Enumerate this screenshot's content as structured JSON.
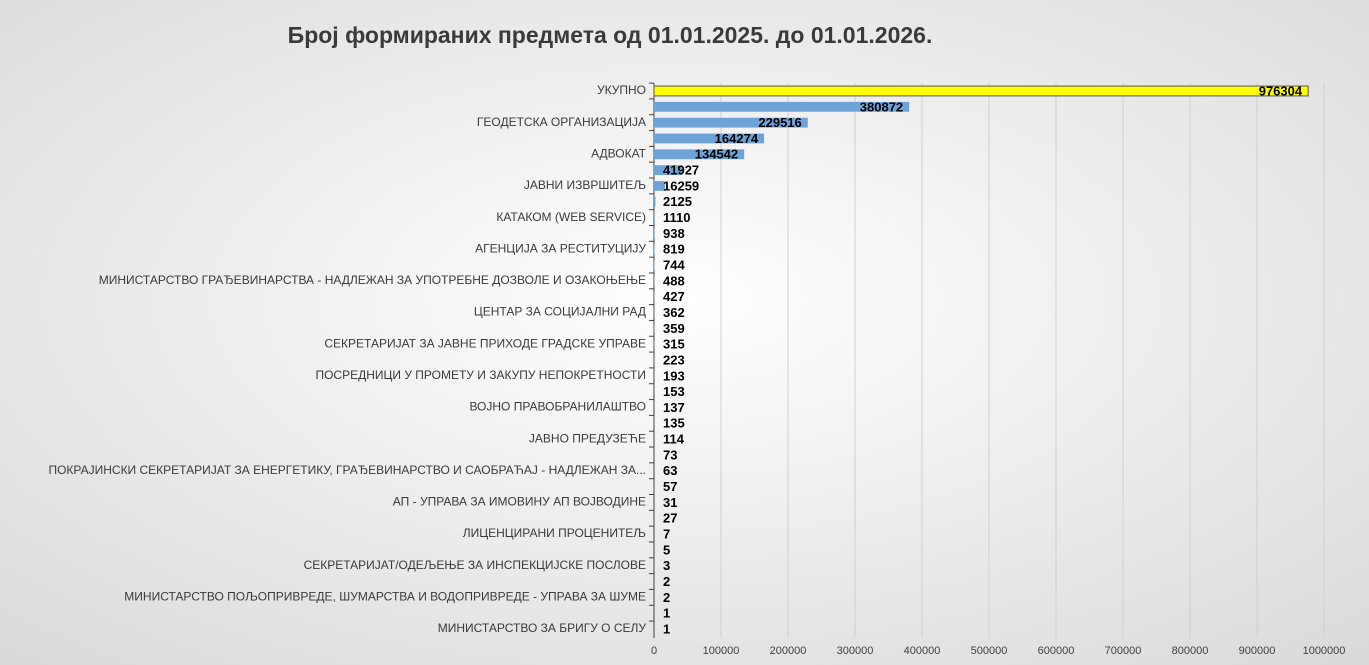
{
  "chart_data": {
    "type": "barh",
    "title": "Број формираних предмета од 01.01.2025. до 01.01.2026.",
    "categories": [
      "УКУПНО",
      null,
      "ГЕОДЕТСКА ОРГАНИЗАЦИЈА",
      null,
      "АДВОКАТ",
      null,
      "ЈАВНИ ИЗВРШИТЕЉ",
      null,
      "КАТАКОМ (WEB SERVICE)",
      null,
      "АГЕНЦИЈА ЗА РЕСТИТУЦИЈУ",
      null,
      "МИНИСТАРСТВО ГРАЂЕВИНАРСТВА - НАДЛЕЖАН ЗА УПОТРЕБНЕ ДОЗВОЛЕ И ОЗАКОЊЕЊЕ",
      null,
      "ЦЕНТАР ЗА СОЦИЈАЛНИ РАД",
      null,
      "СЕКРЕТАРИЈАТ ЗА ЈАВНЕ ПРИХОДЕ ГРАДСКЕ УПРАВЕ",
      null,
      "ПОСРЕДНИЦИ У ПРОМЕТУ И ЗАКУПУ НЕПОКРЕТНОСТИ",
      null,
      "ВОЈНО ПРАВОБРАНИЛАШТВО",
      null,
      "ЈАВНО ПРЕДУЗЕЋЕ",
      null,
      "ПОКРАЈИНСКИ СЕКРЕТАРИЈАТ ЗА ЕНЕРГЕТИКУ, ГРАЂЕВИНАРСТВО И САОБРАЋАЈ - НАДЛЕЖАН ЗА...",
      null,
      "АП - УПРАВА ЗА ИМОВИНУ АП ВОЈВОДИНЕ",
      null,
      "ЛИЦЕНЦИРАНИ ПРОЦЕНИТЕЉ",
      null,
      "СЕКРЕТАРИЈАТ/ОДЕЉЕЊЕ ЗА ИНСПЕКЦИЈСКЕ ПОСЛОВЕ",
      null,
      "МИНИСТАРСТВО ПОЉОПРИВРЕДЕ, ШУМАРСТВА И ВОДОПРИВРЕДЕ - УПРАВА ЗА ШУМЕ",
      null,
      "МИНИСТАРСТВО ЗА БРИГУ О СЕЛУ"
    ],
    "values": [
      976304,
      380872,
      229516,
      164274,
      134542,
      41927,
      16259,
      2125,
      1110,
      938,
      819,
      744,
      488,
      427,
      362,
      359,
      315,
      223,
      193,
      153,
      137,
      135,
      114,
      73,
      63,
      57,
      31,
      27,
      7,
      5,
      3,
      2,
      2,
      1,
      1
    ],
    "colors": [
      "#ffff00",
      "#6fa3d8"
    ],
    "xlim": [
      0,
      1000000
    ],
    "xticks": [
      0,
      100000,
      200000,
      300000,
      400000,
      500000,
      600000,
      700000,
      800000,
      900000,
      1000000
    ],
    "grid": true
  }
}
